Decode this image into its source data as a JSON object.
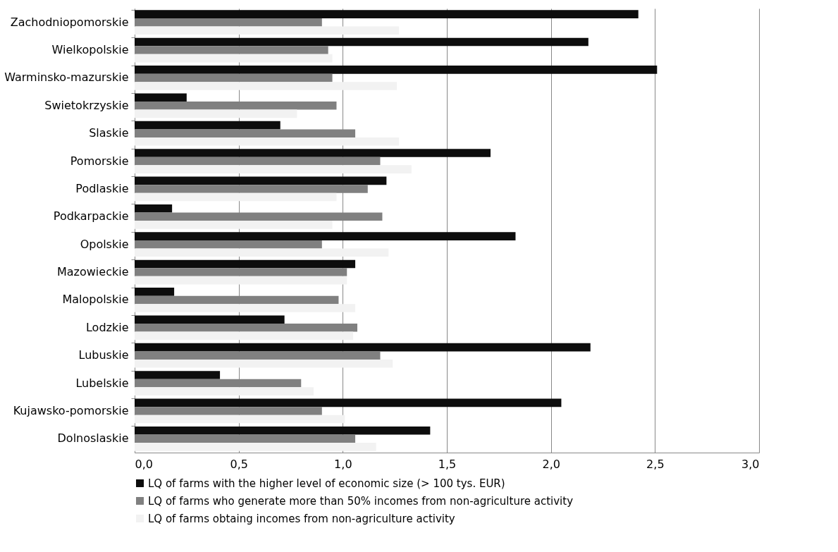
{
  "chart_data": {
    "type": "bar",
    "orientation": "horizontal",
    "categories": [
      "Zachodniopomorskie",
      "Wielkopolskie",
      "Warminsko-mazurskie",
      "Swietokrzyskie",
      "Slaskie",
      "Pomorskie",
      "Podlaskie",
      "Podkarpackie",
      "Opolskie",
      "Mazowieckie",
      "Malopolskie",
      "Lodzkie",
      "Lubuskie",
      "Lubelskie",
      "Kujawsko-pomorskie",
      "Dolnoslaskie"
    ],
    "series": [
      {
        "name": "LQ of farms with the higher level of economic size (> 100 tys. EUR)",
        "color": "#0d0d0d",
        "values": [
          2.42,
          2.18,
          2.51,
          0.25,
          0.7,
          1.71,
          1.21,
          0.18,
          1.83,
          1.06,
          0.19,
          0.72,
          2.19,
          0.41,
          2.05,
          1.42
        ]
      },
      {
        "name": "LQ of farms who generate more than 50% incomes from non-agriculture activity",
        "color": "#808080",
        "values": [
          0.9,
          0.93,
          0.95,
          0.97,
          1.06,
          1.18,
          1.12,
          1.19,
          0.9,
          1.02,
          0.98,
          1.07,
          1.18,
          0.8,
          0.9,
          1.06
        ]
      },
      {
        "name": "LQ of farms obtaing incomes from non-agriculture activity",
        "color": "#f2f2f2",
        "values": [
          1.27,
          0.95,
          1.26,
          0.78,
          1.27,
          1.33,
          0.97,
          0.95,
          1.22,
          1.02,
          1.06,
          1.05,
          1.24,
          0.86,
          1.01,
          1.16
        ]
      }
    ],
    "xlim": [
      0,
      3
    ],
    "xticks": [
      {
        "value": 0,
        "label": "0,0"
      },
      {
        "value": 0.5,
        "label": "0,5"
      },
      {
        "value": 1,
        "label": "1,0"
      },
      {
        "value": 1.5,
        "label": "1,5"
      },
      {
        "value": 2,
        "label": "2,0"
      },
      {
        "value": 2.5,
        "label": "2,5"
      },
      {
        "value": 3,
        "label": "3,0"
      }
    ],
    "grid": "x",
    "legend": "bottom"
  }
}
